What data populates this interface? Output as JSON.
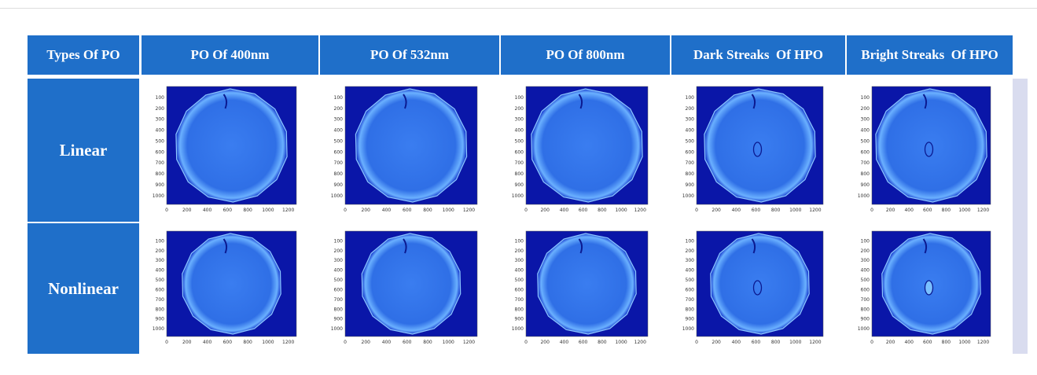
{
  "header": [
    "Types Of PO",
    "PO Of 400nm",
    "PO Of 532nm",
    "PO Of 800nm",
    "Dark Streaks  Of HPO",
    "Bright Streaks  Of HPO"
  ],
  "rows": [
    "Linear",
    "Nonlinear"
  ],
  "plot_axes": {
    "yticks": [
      100,
      200,
      300,
      400,
      500,
      600,
      700,
      800,
      900,
      1000
    ],
    "xticks": [
      0,
      200,
      400,
      600,
      800,
      1000,
      1200
    ]
  }
}
